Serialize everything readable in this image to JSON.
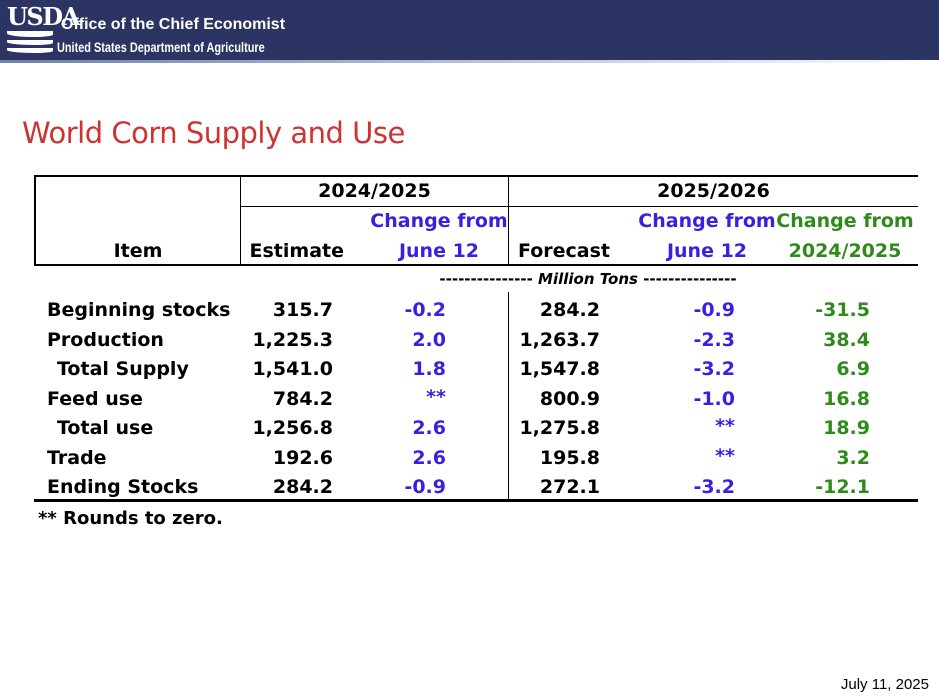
{
  "header": {
    "logo_text": "USDA",
    "office": "Office of the Chief Economist",
    "department": "United States Department of Agriculture"
  },
  "title": "World Corn Supply and Use",
  "table": {
    "group1": "2024/2025",
    "group2": "2025/2026",
    "col_item": "Item",
    "col_est": "Estimate",
    "col_chg1_l1": "Change from",
    "col_chg1_l2": "June 12",
    "col_fore": "Forecast",
    "col_chg2_l1": "Change from",
    "col_chg2_l2": "June 12",
    "col_chg3_l1": "Change from",
    "col_chg3_l2": "2024/2025",
    "unit_left": "---------------",
    "unit_mid": "Million Tons",
    "unit_right": "---------------",
    "rows": [
      {
        "item": "Beginning stocks",
        "est": "315.7",
        "chg1": "-0.2",
        "fore": "284.2",
        "chg2": "-0.9",
        "chg3": "-31.5"
      },
      {
        "item": "Production",
        "est": "1,225.3",
        "chg1": "2.0",
        "fore": "1,263.7",
        "chg2": "-2.3",
        "chg3": "38.4"
      },
      {
        "item": "  Total Supply",
        "est": "1,541.0",
        "chg1": "1.8",
        "fore": "1,547.8",
        "chg2": "-3.2",
        "chg3": "6.9"
      },
      {
        "item": "Feed use",
        "est": "784.2",
        "chg1": "**",
        "fore": "800.9",
        "chg2": "-1.0",
        "chg3": "16.8"
      },
      {
        "item": "  Total use",
        "est": "1,256.8",
        "chg1": "2.6",
        "fore": "1,275.8",
        "chg2": "**",
        "chg3": "18.9"
      },
      {
        "item": "Trade",
        "est": "192.6",
        "chg1": "2.6",
        "fore": "195.8",
        "chg2": "**",
        "chg3": "3.2"
      },
      {
        "item": "Ending Stocks",
        "est": "284.2",
        "chg1": "-0.9",
        "fore": "272.1",
        "chg2": "-3.2",
        "chg3": "-12.1"
      }
    ]
  },
  "footnote": "** Rounds to zero.",
  "date": "July 11, 2025",
  "colors": {
    "header_bg": "#2c3463",
    "title": "#cc3333",
    "blue": "#3d1ee0",
    "green": "#2f8a1c"
  }
}
